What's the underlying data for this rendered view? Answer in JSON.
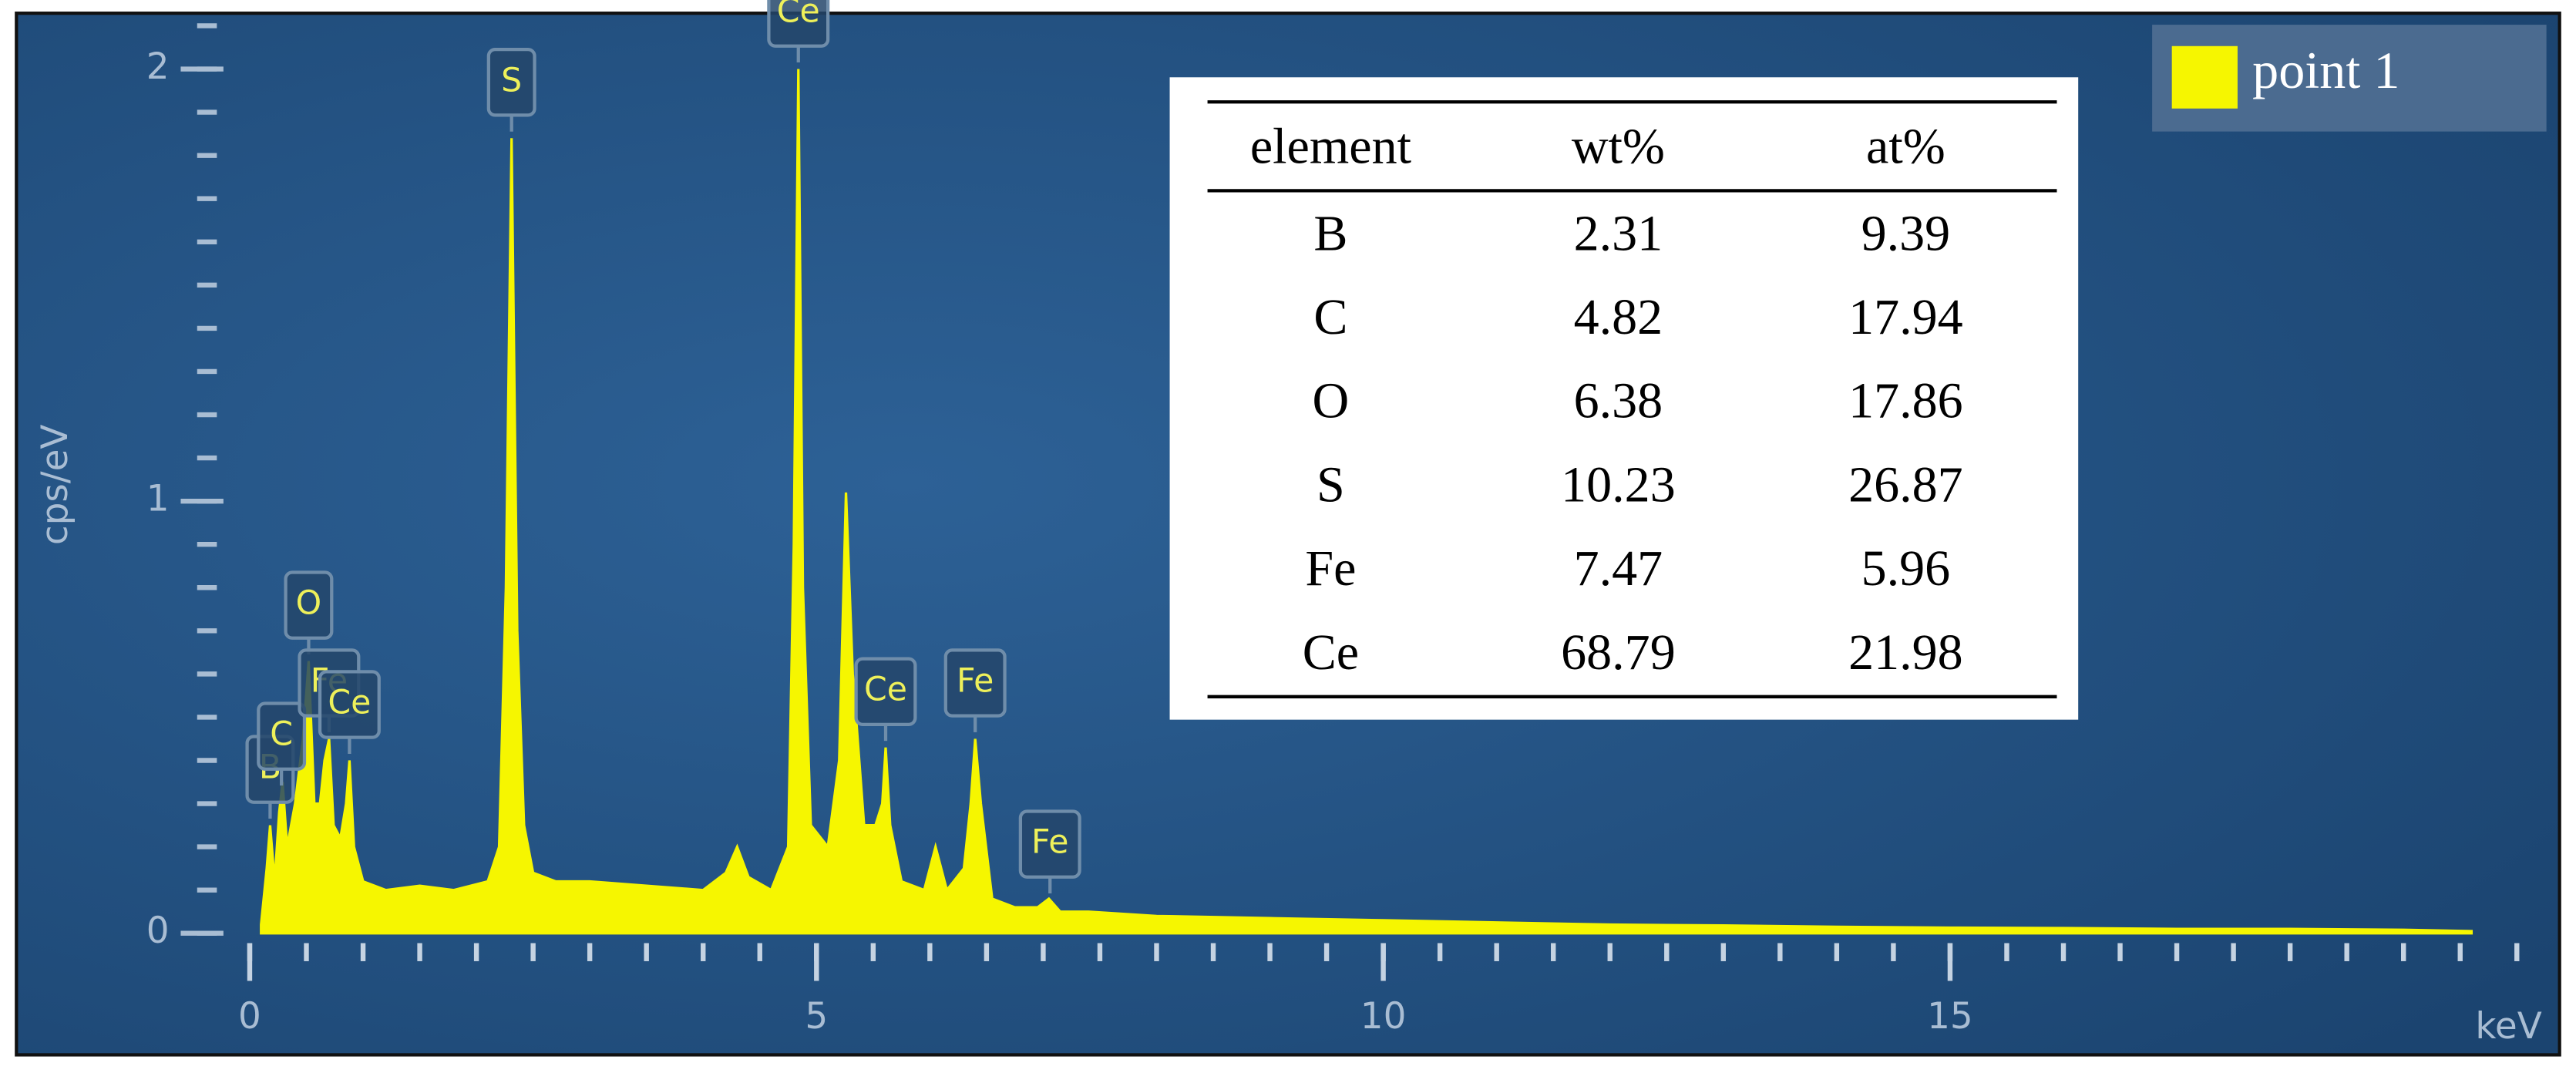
{
  "chart_data": {
    "type": "area",
    "ylabel": "cps/eV",
    "xlabel": "keV",
    "xlim": [
      0,
      20
    ],
    "xticks": [
      0,
      5,
      10,
      15
    ],
    "minor_xticks": [
      0,
      0.5,
      1,
      1.5,
      2,
      2.5,
      3,
      3.5,
      4,
      4.5,
      5,
      5.5,
      6,
      6.5,
      7,
      7.5,
      8,
      8.5,
      9,
      9.5,
      10,
      10.5,
      11,
      11.5,
      12,
      12.5,
      13,
      13.5,
      14,
      14.5,
      15,
      15.5,
      16,
      16.5,
      17,
      17.5,
      18,
      18.5,
      19,
      19.5,
      20
    ],
    "ylim": [
      0,
      2.12
    ],
    "yticks": [
      0,
      1,
      2
    ],
    "minor_yticks": [
      0,
      0.1,
      0.2,
      0.3,
      0.4,
      0.5,
      0.6,
      0.7,
      0.8,
      0.9,
      1,
      1.1,
      1.2,
      1.3,
      1.4,
      1.5,
      1.6,
      1.7,
      1.8,
      1.9,
      2,
      2.1
    ],
    "x": [
      0.1,
      0.15,
      0.18,
      0.22,
      0.26,
      0.29,
      0.33,
      0.4,
      0.47,
      0.52,
      0.57,
      0.62,
      0.66,
      0.7,
      0.74,
      0.8,
      0.85,
      0.88,
      0.92,
      1.0,
      1.2,
      1.5,
      1.8,
      2.1,
      2.2,
      2.26,
      2.31,
      2.36,
      2.42,
      2.5,
      2.7,
      3.0,
      3.5,
      4.0,
      4.2,
      4.3,
      4.4,
      4.6,
      4.75,
      4.8,
      4.84,
      4.88,
      4.95,
      5.1,
      5.2,
      5.26,
      5.32,
      5.42,
      5.52,
      5.58,
      5.61,
      5.65,
      5.75,
      5.95,
      6.05,
      6.15,
      6.3,
      6.36,
      6.4,
      6.45,
      6.55,
      6.75,
      6.95,
      7.05,
      7.15,
      7.4,
      8,
      9,
      10,
      11,
      12,
      13,
      14,
      15,
      16,
      17,
      18,
      19,
      19.6
    ],
    "series": [
      {
        "name": "point 1",
        "color": "#f6f600",
        "values": [
          0.02,
          0.15,
          0.25,
          0.12,
          0.28,
          0.35,
          0.2,
          0.3,
          0.45,
          0.63,
          0.3,
          0.3,
          0.4,
          0.45,
          0.25,
          0.22,
          0.3,
          0.4,
          0.2,
          0.12,
          0.1,
          0.11,
          0.1,
          0.12,
          0.2,
          0.8,
          1.84,
          0.7,
          0.25,
          0.14,
          0.12,
          0.12,
          0.11,
          0.1,
          0.14,
          0.2,
          0.13,
          0.1,
          0.2,
          0.9,
          2.0,
          0.8,
          0.25,
          0.2,
          0.4,
          1.02,
          0.6,
          0.25,
          0.25,
          0.3,
          0.43,
          0.25,
          0.12,
          0.1,
          0.2,
          0.1,
          0.15,
          0.3,
          0.45,
          0.3,
          0.08,
          0.06,
          0.06,
          0.08,
          0.05,
          0.05,
          0.04,
          0.035,
          0.03,
          0.025,
          0.02,
          0.018,
          0.015,
          0.013,
          0.012,
          0.01,
          0.01,
          0.008,
          0.005
        ]
      }
    ],
    "annotations": [
      {
        "text": "B",
        "x": 0.18
      },
      {
        "text": "C",
        "x": 0.28
      },
      {
        "text": "O",
        "x": 0.52
      },
      {
        "text": "Fe",
        "x": 0.7
      },
      {
        "text": "Ce",
        "x": 0.88
      },
      {
        "text": "S",
        "x": 2.31
      },
      {
        "text": "Ce",
        "x": 4.84
      },
      {
        "text": "Ce",
        "x": 5.61
      },
      {
        "text": "Fe",
        "x": 6.4
      },
      {
        "text": "Fe",
        "x": 7.06
      }
    ],
    "table": {
      "columns": [
        "element",
        "wt%",
        "at%"
      ],
      "rows": [
        [
          "B",
          2.31,
          9.39
        ],
        [
          "C",
          4.82,
          17.94
        ],
        [
          "O",
          6.38,
          17.86
        ],
        [
          "S",
          10.23,
          26.87
        ],
        [
          "Fe",
          7.47,
          5.96
        ],
        [
          "Ce",
          68.79,
          21.98
        ]
      ]
    }
  }
}
